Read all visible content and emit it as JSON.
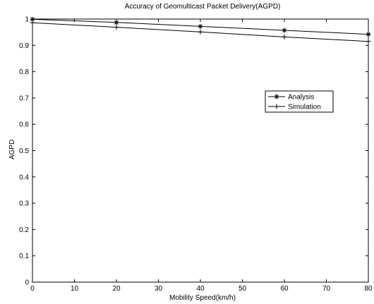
{
  "chart_data": {
    "type": "line",
    "title": "Accuracy of Geomulticast Packet Delivery(AGPD)",
    "xlabel": "Mobility Speed(km/h)",
    "ylabel": "AGPD",
    "xlim": [
      0,
      80
    ],
    "ylim": [
      0,
      1
    ],
    "xticks": [
      0,
      10,
      20,
      30,
      40,
      50,
      60,
      70,
      80
    ],
    "yticks": [
      0,
      0.1,
      0.2,
      0.3,
      0.4,
      0.5,
      0.6,
      0.7,
      0.8,
      0.9,
      1
    ],
    "grid": false,
    "legend_position": "right",
    "series": [
      {
        "name": "Analysis",
        "marker": "asterisk",
        "x": [
          0,
          20,
          40,
          60,
          80
        ],
        "y": [
          0.999,
          0.987,
          0.972,
          0.957,
          0.942
        ]
      },
      {
        "name": "Simulation",
        "marker": "plus",
        "x": [
          0,
          20,
          40,
          60,
          80
        ],
        "y": [
          0.986,
          0.969,
          0.951,
          0.932,
          0.915
        ]
      }
    ],
    "colors": {
      "line": "#000000",
      "axis": "#000000"
    }
  }
}
